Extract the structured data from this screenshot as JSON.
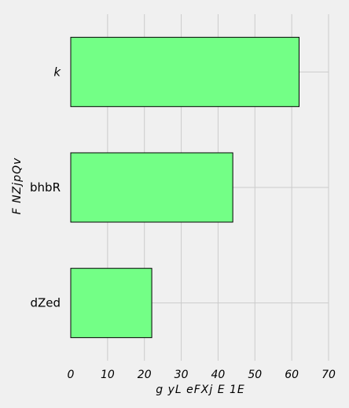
{
  "chart_data": {
    "type": "bar",
    "orientation": "horizontal",
    "categories": [
      "k",
      "bhbR",
      "dZed"
    ],
    "values": [
      62,
      44,
      22
    ],
    "xlabel": "g yL eFXj E 1E",
    "ylabel": "F NZjpQv",
    "xlim": [
      0,
      70
    ],
    "xticks": [
      "0",
      "10",
      "20",
      "30",
      "40",
      "50",
      "60",
      "70"
    ],
    "grid": true,
    "bar_color": "#73ff86",
    "bar_edge_color": "#000000",
    "background_color": "#f0f0f0"
  }
}
